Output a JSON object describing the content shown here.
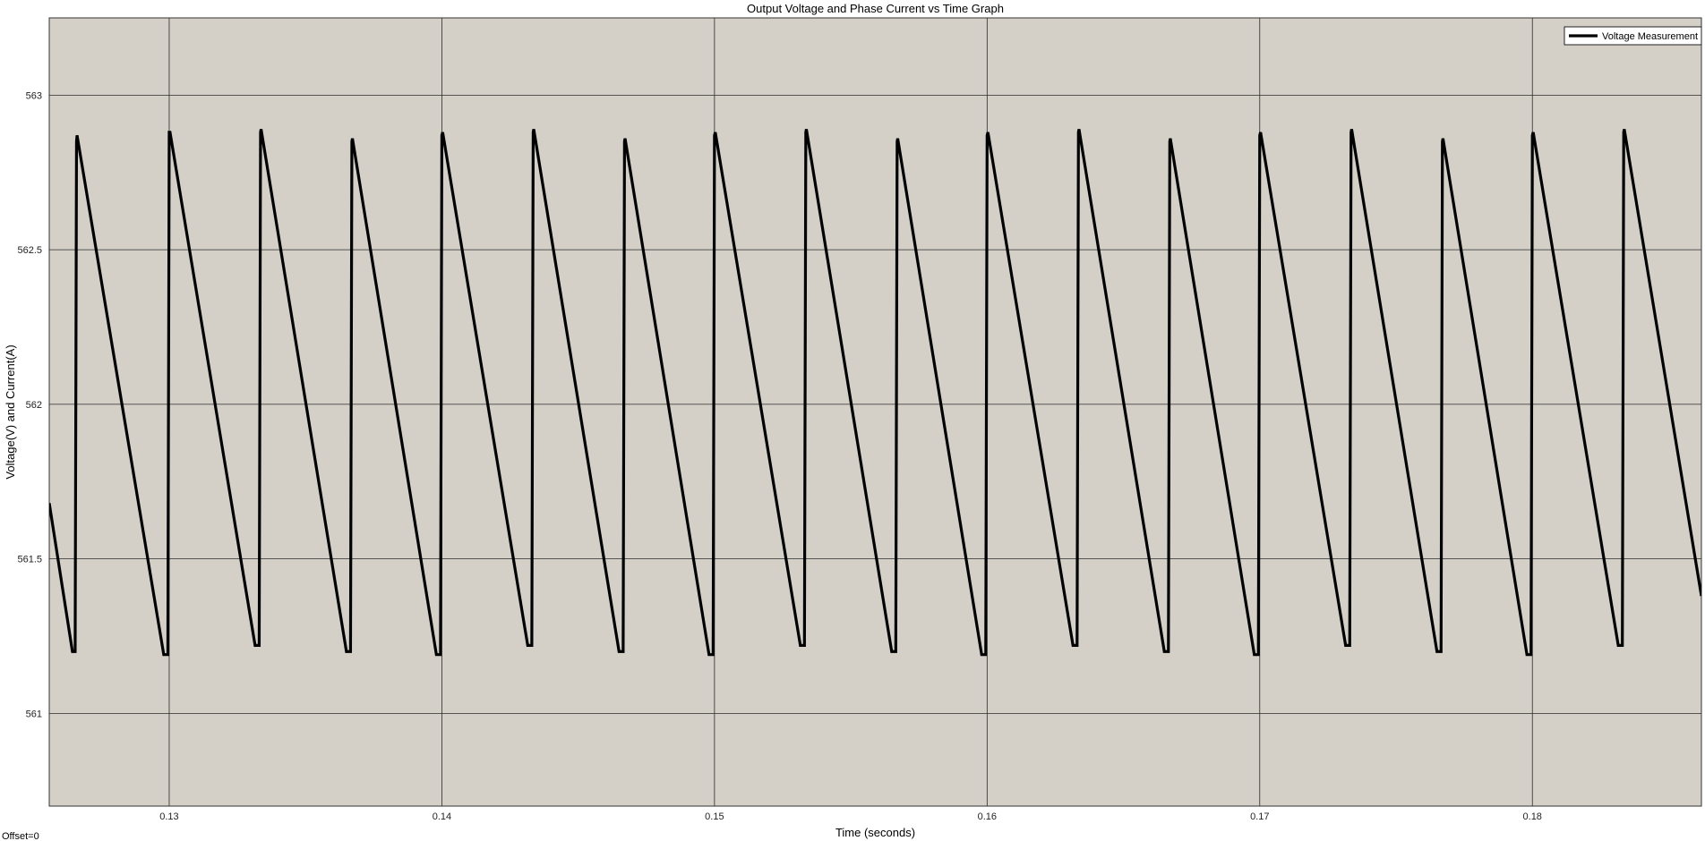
{
  "chart_data": {
    "type": "line",
    "title": "Output Voltage and Phase Current vs Time Graph",
    "xlabel": "Time (seconds)",
    "ylabel": "Voltage(V) and Current(A)",
    "xlim": [
      0.1256,
      0.1862
    ],
    "ylim": [
      560.7,
      563.25
    ],
    "x_ticks": [
      0.13,
      0.14,
      0.15,
      0.16,
      0.17,
      0.18
    ],
    "x_tick_labels": [
      "0.13",
      "0.14",
      "0.15",
      "0.16",
      "0.17",
      "0.18"
    ],
    "y_ticks": [
      561,
      561.5,
      562,
      562.5,
      563
    ],
    "y_tick_labels": [
      "561",
      "561.5",
      "562",
      "562.5",
      "563"
    ],
    "grid": true,
    "legend_position": "top-right",
    "series": [
      {
        "name": "Voltage Measurement",
        "color": "#000000",
        "x": [
          0.1256,
          0.12645,
          0.12655,
          0.1266,
          0.12662,
          0.1298,
          0.12995,
          0.13,
          0.13003,
          0.13315,
          0.1333,
          0.13335,
          0.13337,
          0.1365,
          0.13665,
          0.1367,
          0.13672,
          0.1398,
          0.13995,
          0.14,
          0.14003,
          0.14315,
          0.1433,
          0.14335,
          0.14337,
          0.1465,
          0.14665,
          0.1467,
          0.14672,
          0.1498,
          0.14995,
          0.15,
          0.15003,
          0.15315,
          0.1533,
          0.15335,
          0.15337,
          0.1565,
          0.15665,
          0.1567,
          0.15672,
          0.1598,
          0.15995,
          0.16,
          0.16003,
          0.16315,
          0.1633,
          0.16335,
          0.16337,
          0.1665,
          0.16665,
          0.1667,
          0.16672,
          0.1698,
          0.16995,
          0.17,
          0.17003,
          0.17315,
          0.1733,
          0.17335,
          0.17337,
          0.1765,
          0.17665,
          0.1767,
          0.17672,
          0.1798,
          0.17995,
          0.18,
          0.18003,
          0.18315,
          0.1833,
          0.18335,
          0.18337,
          0.1862
        ],
        "values": [
          561.68,
          561.2,
          561.2,
          562.85,
          562.87,
          561.19,
          561.19,
          562.88,
          562.88,
          561.22,
          561.22,
          562.88,
          562.89,
          561.2,
          561.2,
          562.85,
          562.86,
          561.19,
          561.19,
          562.87,
          562.88,
          561.22,
          561.22,
          562.88,
          562.89,
          561.2,
          561.2,
          562.85,
          562.86,
          561.19,
          561.19,
          562.87,
          562.88,
          561.22,
          561.22,
          562.88,
          562.89,
          561.2,
          561.2,
          562.85,
          562.86,
          561.19,
          561.19,
          562.87,
          562.88,
          561.22,
          561.22,
          562.88,
          562.89,
          561.2,
          561.2,
          562.85,
          562.86,
          561.19,
          561.19,
          562.87,
          562.88,
          561.22,
          561.22,
          562.88,
          562.89,
          561.2,
          561.2,
          562.85,
          562.86,
          561.19,
          561.19,
          562.87,
          562.88,
          561.22,
          561.22,
          562.88,
          562.89,
          561.38
        ]
      }
    ],
    "footer_text": "Offset=0",
    "colors": {
      "plot_background": "#d4d0c8",
      "grid": "#2a2a2a",
      "line": "#000000"
    }
  }
}
